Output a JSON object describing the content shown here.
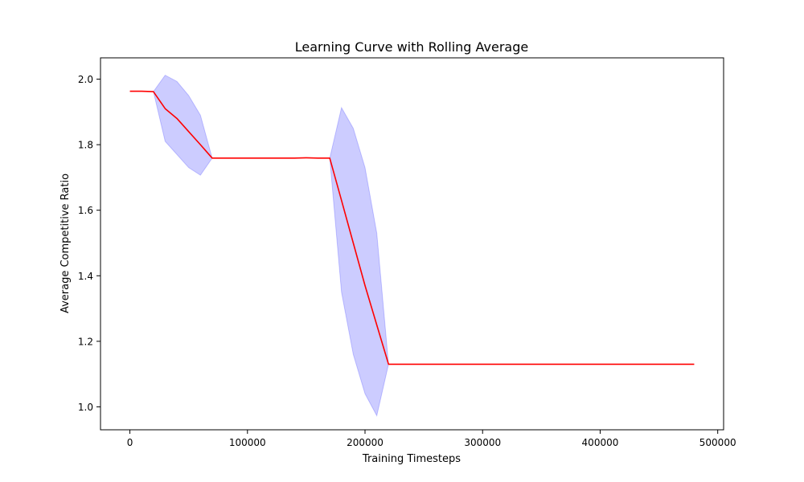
{
  "chart_data": {
    "type": "line",
    "title": "Learning Curve with Rolling Average",
    "xlabel": "Training Timesteps",
    "ylabel": "Average Competitive Ratio",
    "xlim": [
      -25000,
      505000
    ],
    "ylim": [
      0.93,
      2.065
    ],
    "x_ticks": [
      0,
      100000,
      200000,
      300000,
      400000,
      500000
    ],
    "y_ticks": [
      1.0,
      1.2,
      1.4,
      1.6,
      1.8,
      2.0
    ],
    "x_tick_labels": [
      "0",
      "100000",
      "200000",
      "300000",
      "400000",
      "500000"
    ],
    "y_tick_labels": [
      "1.0",
      "1.2",
      "1.4",
      "1.6",
      "1.8",
      "2.0"
    ],
    "grid": false,
    "colors": {
      "line": "#ff0000",
      "band": "#0000ff"
    },
    "series": [
      {
        "x": [
          0,
          10000,
          20000,
          30000,
          40000,
          50000,
          60000,
          70000,
          80000,
          90000,
          100000,
          110000,
          120000,
          130000,
          140000,
          150000,
          160000,
          170000,
          180000,
          190000,
          200000,
          210000,
          220000,
          230000,
          240000,
          250000,
          260000,
          270000,
          280000,
          290000,
          300000,
          310000,
          320000,
          330000,
          340000,
          350000,
          360000,
          370000,
          380000,
          390000,
          400000,
          410000,
          420000,
          430000,
          440000,
          450000,
          460000,
          470000,
          480000
        ],
        "y": [
          1.963,
          1.963,
          1.962,
          1.91,
          1.88,
          1.84,
          1.8,
          1.759,
          1.759,
          1.759,
          1.759,
          1.759,
          1.759,
          1.759,
          1.759,
          1.76,
          1.759,
          1.759,
          1.63,
          1.5,
          1.37,
          1.25,
          1.13,
          1.13,
          1.13,
          1.13,
          1.13,
          1.13,
          1.13,
          1.13,
          1.13,
          1.13,
          1.13,
          1.13,
          1.13,
          1.13,
          1.13,
          1.13,
          1.13,
          1.13,
          1.13,
          1.13,
          1.13,
          1.13,
          1.13,
          1.13,
          1.13,
          1.13,
          1.13
        ],
        "upper": [
          1.963,
          1.963,
          1.962,
          2.012,
          1.993,
          1.95,
          1.89,
          1.759,
          1.759,
          1.759,
          1.759,
          1.759,
          1.759,
          1.759,
          1.759,
          1.76,
          1.759,
          1.759,
          1.913,
          1.85,
          1.73,
          1.53,
          1.13,
          1.13,
          1.13,
          1.13,
          1.13,
          1.13,
          1.13,
          1.13,
          1.13,
          1.13,
          1.13,
          1.13,
          1.13,
          1.13,
          1.13,
          1.13,
          1.13,
          1.13,
          1.13,
          1.13,
          1.13,
          1.13,
          1.13,
          1.13,
          1.13,
          1.13,
          1.13
        ],
        "lower": [
          1.963,
          1.963,
          1.962,
          1.81,
          1.77,
          1.73,
          1.707,
          1.759,
          1.759,
          1.759,
          1.759,
          1.759,
          1.759,
          1.759,
          1.759,
          1.76,
          1.759,
          1.759,
          1.35,
          1.16,
          1.04,
          0.973,
          1.13,
          1.13,
          1.13,
          1.13,
          1.13,
          1.13,
          1.13,
          1.13,
          1.13,
          1.13,
          1.13,
          1.13,
          1.13,
          1.13,
          1.13,
          1.13,
          1.13,
          1.13,
          1.13,
          1.13,
          1.13,
          1.13,
          1.13,
          1.13,
          1.13,
          1.13,
          1.13
        ]
      }
    ]
  }
}
